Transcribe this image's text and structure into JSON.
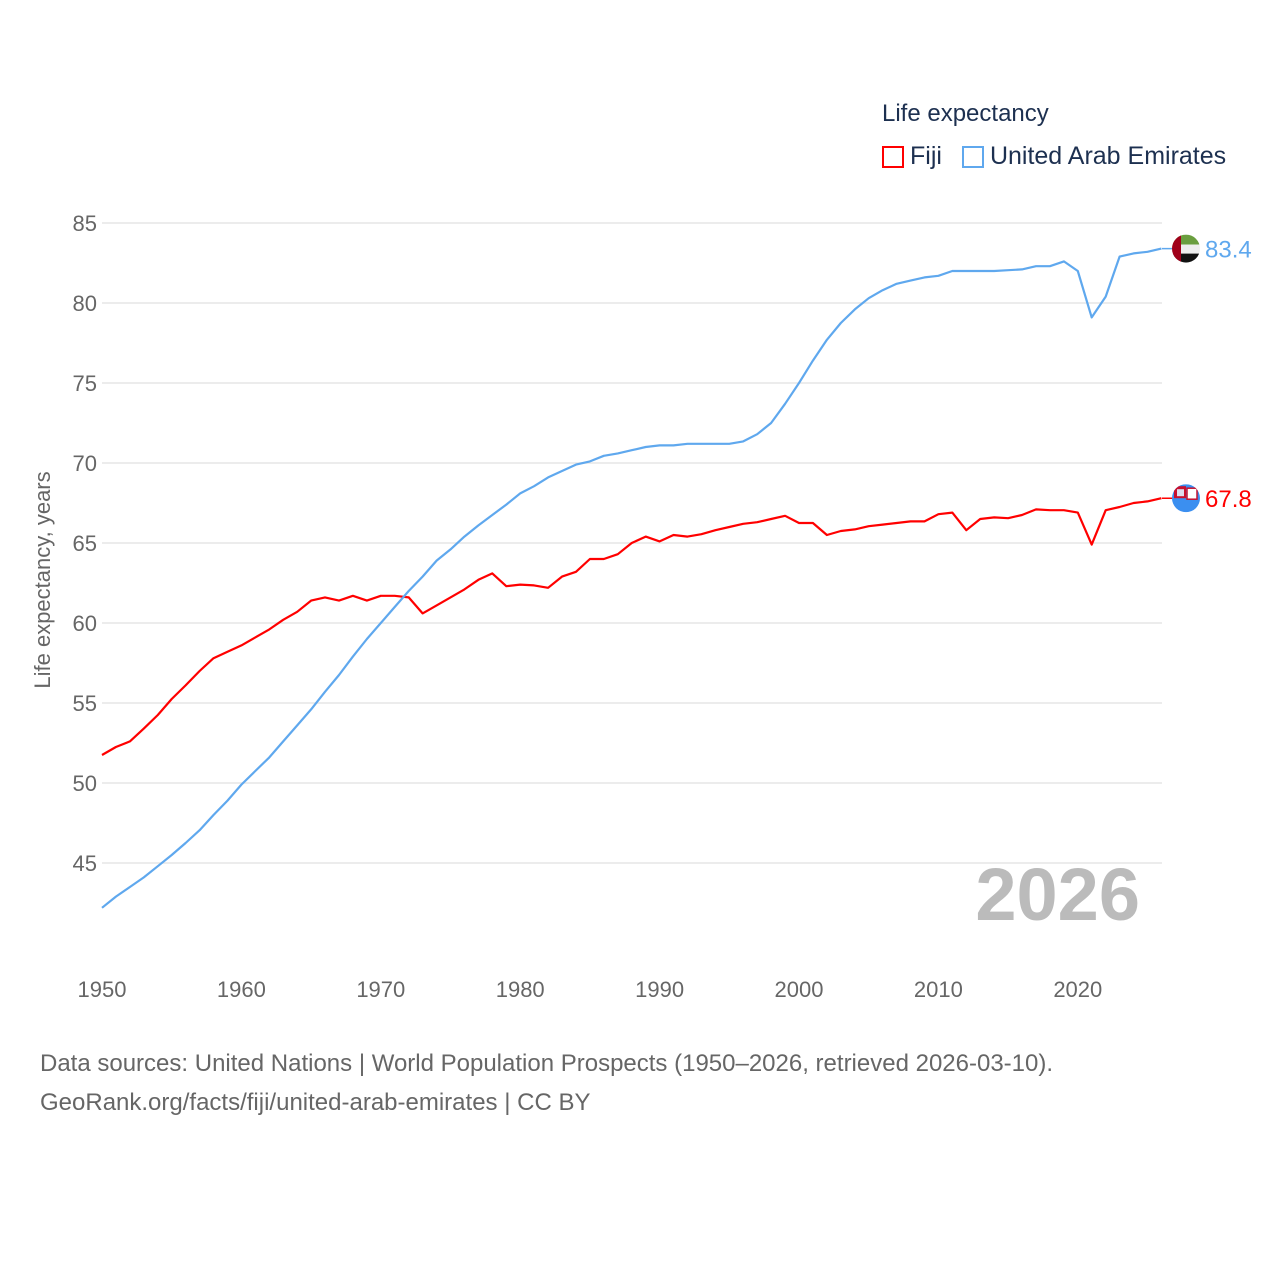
{
  "chart_data": {
    "type": "line",
    "title": "Life expectancy",
    "xlabel": "",
    "ylabel": "Life expectancy, years",
    "xlim": [
      1950,
      2026
    ],
    "ylim": [
      40,
      85
    ],
    "yticks": [
      45,
      50,
      55,
      60,
      65,
      70,
      75,
      80,
      85
    ],
    "xticks": [
      1950,
      1960,
      1970,
      1980,
      1990,
      2000,
      2010,
      2020
    ],
    "grid": true,
    "legend_placement": "top-right",
    "current_year_label": "2026",
    "x": [
      1950,
      1951,
      1952,
      1953,
      1954,
      1955,
      1956,
      1957,
      1958,
      1959,
      1960,
      1961,
      1962,
      1963,
      1964,
      1965,
      1966,
      1967,
      1968,
      1969,
      1970,
      1971,
      1972,
      1973,
      1974,
      1975,
      1976,
      1977,
      1978,
      1979,
      1980,
      1981,
      1982,
      1983,
      1984,
      1985,
      1986,
      1987,
      1988,
      1989,
      1990,
      1991,
      1992,
      1993,
      1994,
      1995,
      1996,
      1997,
      1998,
      1999,
      2000,
      2001,
      2002,
      2003,
      2004,
      2005,
      2006,
      2007,
      2008,
      2009,
      2010,
      2011,
      2012,
      2013,
      2014,
      2015,
      2016,
      2017,
      2018,
      2019,
      2020,
      2021,
      2022,
      2023,
      2024,
      2025,
      2026
    ],
    "series": [
      {
        "name": "Fiji",
        "color": "#ff0000",
        "end_label": "67.8",
        "values": [
          51.75,
          52.25,
          52.6,
          53.4,
          54.25,
          55.25,
          56.1,
          57.0,
          57.8,
          58.2,
          58.6,
          59.1,
          59.6,
          60.2,
          60.7,
          61.4,
          61.6,
          61.4,
          61.7,
          61.4,
          61.7,
          61.7,
          61.6,
          60.6,
          61.1,
          61.6,
          62.1,
          62.7,
          63.1,
          62.3,
          62.4,
          62.35,
          62.2,
          62.9,
          63.2,
          64.0,
          64.0,
          64.3,
          65.0,
          65.4,
          65.1,
          65.5,
          65.4,
          65.55,
          65.8,
          66.0,
          66.2,
          66.3,
          66.5,
          66.7,
          66.25,
          66.25,
          65.5,
          65.75,
          65.85,
          66.05,
          66.15,
          66.25,
          66.35,
          66.35,
          66.8,
          66.9,
          65.8,
          66.5,
          66.6,
          66.55,
          66.75,
          67.1,
          67.05,
          67.05,
          66.9,
          64.9,
          67.05,
          67.25,
          67.5,
          67.6,
          67.8
        ]
      },
      {
        "name": "United Arab Emirates",
        "color": "#5fa8ee",
        "end_label": "83.4",
        "values": [
          42.2,
          42.9,
          43.5,
          44.1,
          44.8,
          45.5,
          46.25,
          47.05,
          48.0,
          48.9,
          49.9,
          50.75,
          51.6,
          52.6,
          53.6,
          54.6,
          55.7,
          56.75,
          57.9,
          59.0,
          60.0,
          61.0,
          62.0,
          62.9,
          63.9,
          64.6,
          65.4,
          66.1,
          66.75,
          67.4,
          68.1,
          68.55,
          69.1,
          69.5,
          69.9,
          70.1,
          70.45,
          70.6,
          70.8,
          71.0,
          71.1,
          71.1,
          71.2,
          71.2,
          71.2,
          71.2,
          71.35,
          71.8,
          72.5,
          73.7,
          75.0,
          76.4,
          77.7,
          78.75,
          79.6,
          80.3,
          80.8,
          81.2,
          81.4,
          81.6,
          81.7,
          82.0,
          82.0,
          82.0,
          82.0,
          82.05,
          82.1,
          82.3,
          82.3,
          82.6,
          82.0,
          79.1,
          80.4,
          82.9,
          83.1,
          83.2,
          83.4
        ]
      }
    ]
  },
  "source": {
    "line1": "Data sources: United Nations | World Population Prospects (1950–2026, retrieved 2026-03-10).",
    "line2": "GeoRank.org/facts/fiji/united-arab-emirates | CC BY"
  }
}
